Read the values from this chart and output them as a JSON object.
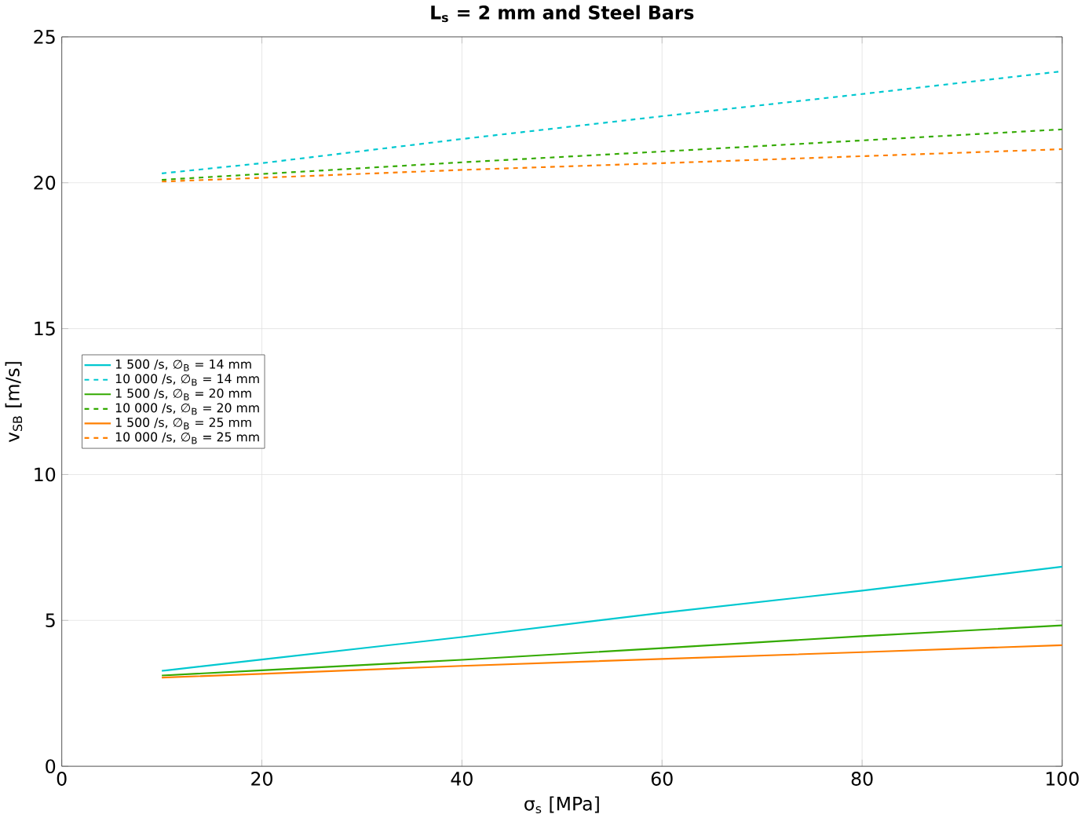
{
  "chart_data": {
    "type": "line",
    "title": "**L$_{s}$ = 2 mm and Steel Bars**",
    "xlabel": "σ$_{s}$ [MPa]",
    "ylabel": "v$_{SB}$ [m/s]",
    "x": [
      10,
      20,
      40,
      60,
      80,
      100
    ],
    "series": [
      {
        "name": "1 500 /s, ∅$_{B}$ = 14 mm",
        "color": "#00c8d0",
        "line_style": "solid",
        "values": [
          3.27,
          3.66,
          4.43,
          5.26,
          6.02,
          6.84
        ]
      },
      {
        "name": "10 000 /s, ∅$_{B}$ = 14 mm",
        "color": "#00c8d0",
        "line_style": "dashed",
        "values": [
          20.32,
          20.67,
          21.5,
          22.28,
          23.04,
          23.82
        ]
      },
      {
        "name": "1 500 /s, ∅$_{B}$ = 20 mm",
        "color": "#33aa00",
        "line_style": "solid",
        "values": [
          3.11,
          3.29,
          3.65,
          4.05,
          4.46,
          4.83
        ]
      },
      {
        "name": "10 000 /s, ∅$_{B}$ = 20 mm",
        "color": "#33aa00",
        "line_style": "dashed",
        "values": [
          20.1,
          20.3,
          20.7,
          21.07,
          21.45,
          21.83
        ]
      },
      {
        "name": "1 500 /s, ∅$_{B}$ = 25 mm",
        "color": "#ff7f00",
        "line_style": "solid",
        "values": [
          3.04,
          3.17,
          3.44,
          3.68,
          3.91,
          4.15
        ]
      },
      {
        "name": "10 000 /s, ∅$_{B}$ = 25 mm",
        "color": "#ff7f00",
        "line_style": "dashed",
        "values": [
          20.04,
          20.17,
          20.44,
          20.67,
          20.91,
          21.15
        ]
      }
    ],
    "xlim": [
      0,
      100
    ],
    "ylim": [
      0,
      25
    ],
    "xticks": [
      0,
      20,
      40,
      60,
      80,
      100
    ],
    "yticks": [
      0,
      5,
      10,
      15,
      20,
      25
    ],
    "grid": true,
    "legend": "left"
  }
}
